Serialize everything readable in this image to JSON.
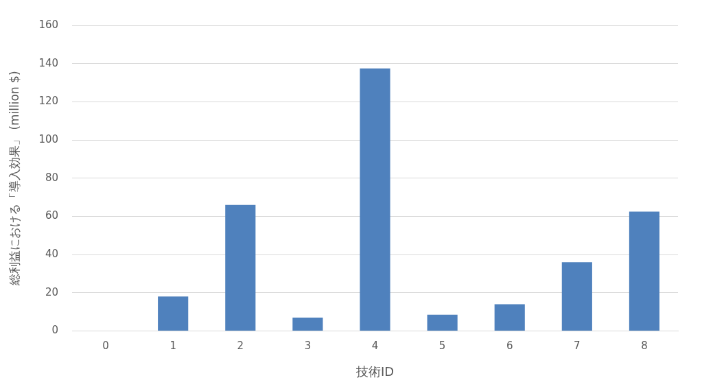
{
  "chart_data": {
    "type": "bar",
    "xlabel": "技術ID",
    "ylabel": "総利益における「導入効果」 (million $)",
    "categories": [
      "0",
      "1",
      "2",
      "3",
      "4",
      "5",
      "6",
      "7",
      "8"
    ],
    "values": [
      0,
      18,
      66,
      7,
      137.5,
      8.5,
      14,
      36,
      62.5
    ],
    "color": "#4f81bd",
    "ylim": [
      0,
      160
    ],
    "yticks": [
      0,
      20,
      40,
      60,
      80,
      100,
      120,
      140,
      160
    ],
    "grid": "y",
    "legend": false
  }
}
